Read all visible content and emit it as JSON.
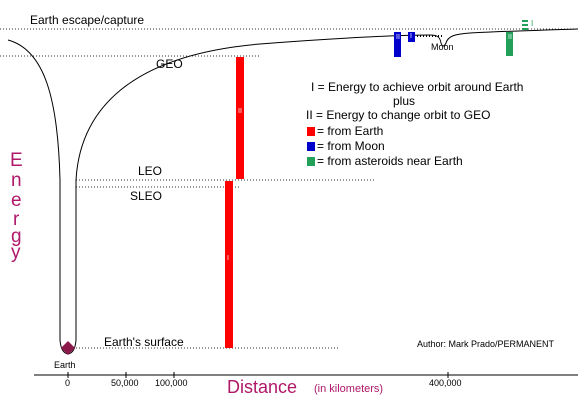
{
  "levels": {
    "escape": "Earth escape/capture",
    "geo": "GEO",
    "leo": "LEO",
    "sleo": "SLEO",
    "surface": "Earth's surface"
  },
  "bodies": {
    "earth": "Earth",
    "moon": "Moon"
  },
  "legend": {
    "line1": "I = Energy to achieve orbit around Earth",
    "line2": "plus",
    "line3": "II = Energy to change orbit to GEO",
    "item_red": "= from Earth",
    "item_blue": "= from Moon",
    "item_green": "= from asteroids near Earth"
  },
  "bar_marks": {
    "one": "I",
    "two": "II"
  },
  "y_axis_letters": [
    "E",
    "n",
    "e",
    "r",
    "g",
    "y"
  ],
  "x_axis": {
    "title": "Distance",
    "unit": "(in kilometers)",
    "ticks": [
      "0",
      "50,000",
      "100,000",
      "400,000"
    ]
  },
  "author": "Author: Mark Prado/PERMANENT",
  "colors": {
    "earth_bar": "#ff0000",
    "moon_bar": "#0000cc",
    "asteroid_bar": "#22a05a",
    "axis_title": "#b0186a",
    "earth_dot": "#8b1a4a"
  }
}
